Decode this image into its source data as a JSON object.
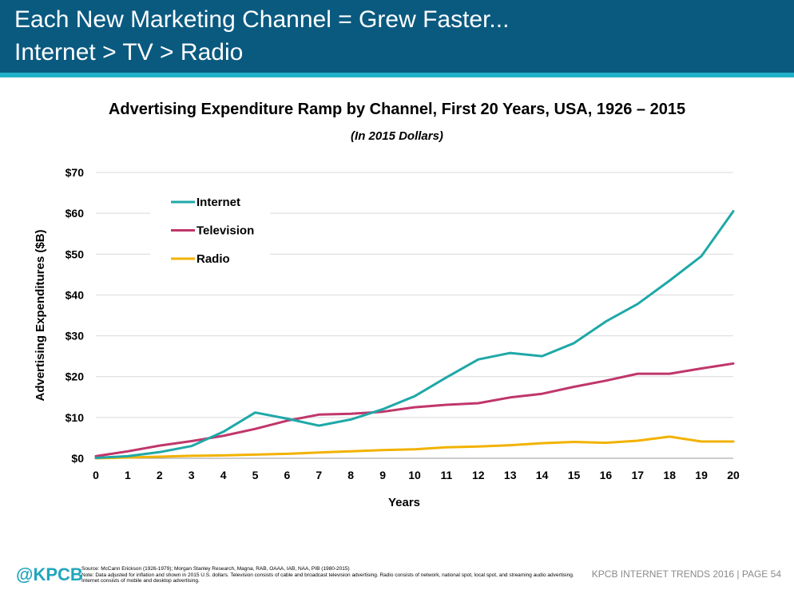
{
  "header": {
    "title_line1": "Each New Marketing Channel = Grew Faster...",
    "title_line2": "Internet > TV > Radio",
    "background_color": "#0a5a80",
    "accent_color": "#21b1c8"
  },
  "chart_data": {
    "type": "line",
    "title": "Advertising Expenditure Ramp by Channel, First 20 Years, USA, 1926 – 2015",
    "subtitle": "(In 2015 Dollars)",
    "xlabel": "Years",
    "ylabel": "Advertising Expenditures ($B)",
    "x": [
      0,
      1,
      2,
      3,
      4,
      5,
      6,
      7,
      8,
      9,
      10,
      11,
      12,
      13,
      14,
      15,
      16,
      17,
      18,
      19,
      20
    ],
    "xlim": [
      0,
      20
    ],
    "ylim": [
      0,
      70
    ],
    "yticks": [
      0,
      10,
      20,
      30,
      40,
      50,
      60,
      70
    ],
    "ytick_labels": [
      "$0",
      "$10",
      "$20",
      "$30",
      "$40",
      "$50",
      "$60",
      "$70"
    ],
    "grid": "horizontal",
    "legend_position": "top-left",
    "series": [
      {
        "name": "Internet",
        "color": "#1fa8a8",
        "values": [
          0.1,
          0.5,
          1.5,
          3,
          6.5,
          11.2,
          9.7,
          8,
          9.5,
          12,
          15.2,
          19.8,
          24.2,
          25.8,
          25,
          28.2,
          33.5,
          37.8,
          43.5,
          49.5,
          60.5
        ]
      },
      {
        "name": "Television",
        "color": "#c0366b",
        "values": [
          0.5,
          1.7,
          3.1,
          4.2,
          5.5,
          7.2,
          9.2,
          10.7,
          10.9,
          11.4,
          12.5,
          13.1,
          13.5,
          14.9,
          15.8,
          17.5,
          19,
          20.7,
          20.7,
          22,
          23.2
        ]
      },
      {
        "name": "Radio",
        "color": "#f2b200",
        "values": [
          0,
          0.2,
          0.4,
          0.6,
          0.7,
          0.9,
          1.1,
          1.4,
          1.7,
          2,
          2.2,
          2.7,
          2.9,
          3.2,
          3.7,
          4,
          3.8,
          4.3,
          5.3,
          4.1,
          4.1
        ]
      }
    ]
  },
  "footer": {
    "logo": "@KPCB",
    "source_line1": "Source: McCann Erickson (1926-1979); Morgan Stanley Research, Magna, RAB, OAAA, IAB, NAA, PIB (1980-2015)",
    "source_line2": "Note: Data adjusted for inflation and shown in 2015 U.S. dollars. Television consists of cable and broadcast television advertising. Radio consists of network, national spot, local spot, and streaming audio advertising. Internet consists of mobile and desktop advertising.",
    "right_text": "KPCB INTERNET TRENDS 2016   |   PAGE 54"
  }
}
